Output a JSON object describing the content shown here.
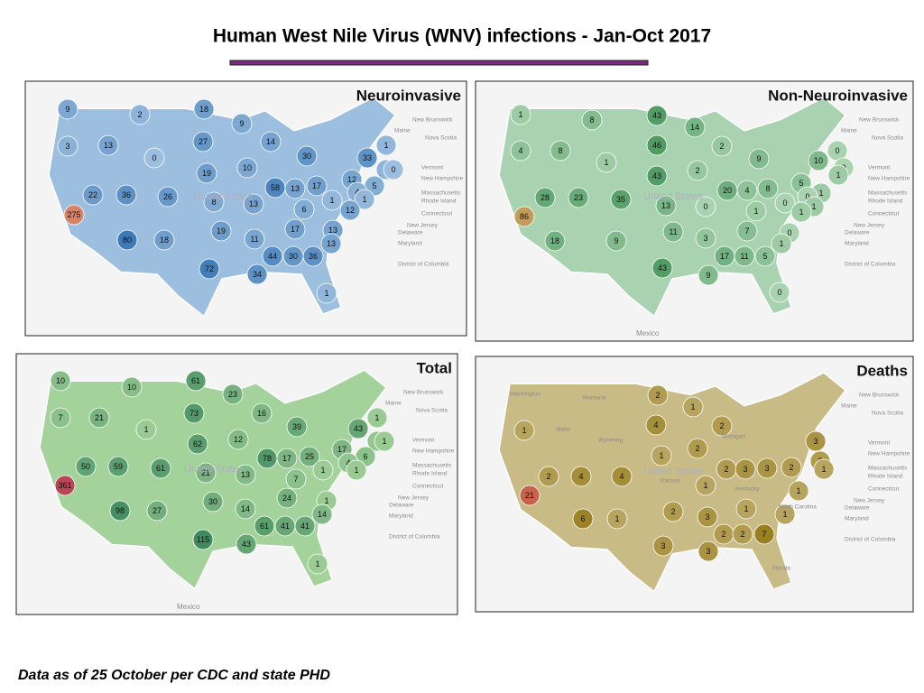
{
  "title": "Human West Nile Virus (WNV) infections - Jan-Oct 2017",
  "footnote": "Data as of 25 October per CDC and state PHD",
  "maps": [
    {
      "title": "Neuroinvasive",
      "color": "#3d7ab8",
      "light_color": "#9dbfdf",
      "outlier_color": "#d9826a",
      "outlier_min": 200,
      "values": [
        9,
        2,
        18,
        9,
        27,
        14,
        1,
        3,
        13,
        0,
        30,
        33,
        2,
        0,
        10,
        19,
        5,
        12,
        58,
        13,
        17,
        22,
        36,
        26,
        8,
        4,
        1,
        13,
        1,
        6,
        12,
        275,
        17,
        13,
        19,
        11,
        13,
        80,
        18,
        44,
        30,
        36,
        72,
        34,
        1
      ],
      "places": [
        "New Brunswick",
        "Maine",
        "Nova Scotia",
        "Vermont",
        "New Hampshire",
        "Massachusetts",
        "Rhode Island",
        "Connecticut",
        "New Jersey",
        "Delaware",
        "Maryland",
        "District of Columbia",
        "United States"
      ]
    },
    {
      "title": "Non-Neuroinvasive",
      "color": "#4f9b62",
      "light_color": "#a9d3b0",
      "outlier_color": "#c49c5a",
      "outlier_min": 80,
      "values": [
        1,
        8,
        43,
        14,
        46,
        2,
        4,
        8,
        1,
        9,
        10,
        0,
        0,
        43,
        2,
        1,
        28,
        23,
        35,
        13,
        20,
        4,
        8,
        5,
        1,
        0,
        1,
        86,
        0,
        1,
        0,
        1,
        11,
        7,
        0,
        18,
        9,
        3,
        1,
        17,
        11,
        5,
        43,
        9,
        0
      ],
      "places": [
        "New Brunswick",
        "Maine",
        "Nova Scotia",
        "Vermont",
        "New Hampshire",
        "Massachusetts",
        "Rhode Island",
        "Connecticut",
        "New Jersey",
        "Delaware",
        "Maryland",
        "District of Columbia",
        "United States",
        "Mexico"
      ]
    },
    {
      "title": "Total",
      "color": "#3f8a5e",
      "light_color": "#a3d29a",
      "outlier_color": "#b94556",
      "outlier_min": 300,
      "values": [
        10,
        10,
        61,
        23,
        73,
        16,
        1,
        7,
        21,
        1,
        39,
        43,
        3,
        1,
        62,
        12,
        17,
        78,
        17,
        25,
        6,
        50,
        59,
        61,
        21,
        4,
        1,
        13,
        1,
        7,
        361,
        24,
        30,
        1,
        14,
        14,
        98,
        27,
        61,
        41,
        41,
        115,
        43,
        1
      ],
      "places": [
        "New Brunswick",
        "Maine",
        "Nova Scotia",
        "Vermont",
        "New Hampshire",
        "Massachusetts",
        "Rhode Island",
        "Connecticut",
        "New Jersey",
        "Delaware",
        "Maryland",
        "District of Columbia",
        "United States",
        "Mexico"
      ]
    },
    {
      "title": "Deaths",
      "color": "#9a7f1f",
      "light_color": "#c9bb86",
      "outlier_color": "#c8624a",
      "outlier_min": 15,
      "values": [
        2,
        1,
        4,
        2,
        1,
        3,
        1,
        2,
        2,
        1,
        2,
        4,
        4,
        2,
        3,
        3,
        2,
        1,
        1,
        21,
        2,
        3,
        1,
        6,
        1,
        2,
        2,
        7,
        1,
        3,
        3
      ],
      "places": [
        "New Brunswick",
        "Maine",
        "Nova Scotia",
        "Vermont",
        "New Hampshire",
        "Massachusetts",
        "Rhode Island",
        "Connecticut",
        "New Jersey",
        "Delaware",
        "Maryland",
        "District of Columbia",
        "United States",
        "Washington",
        "Montana",
        "Idaho",
        "Wyoming",
        "Kansas",
        "Michigan",
        "Kentucky",
        "North Carolina",
        "Florida"
      ]
    }
  ]
}
